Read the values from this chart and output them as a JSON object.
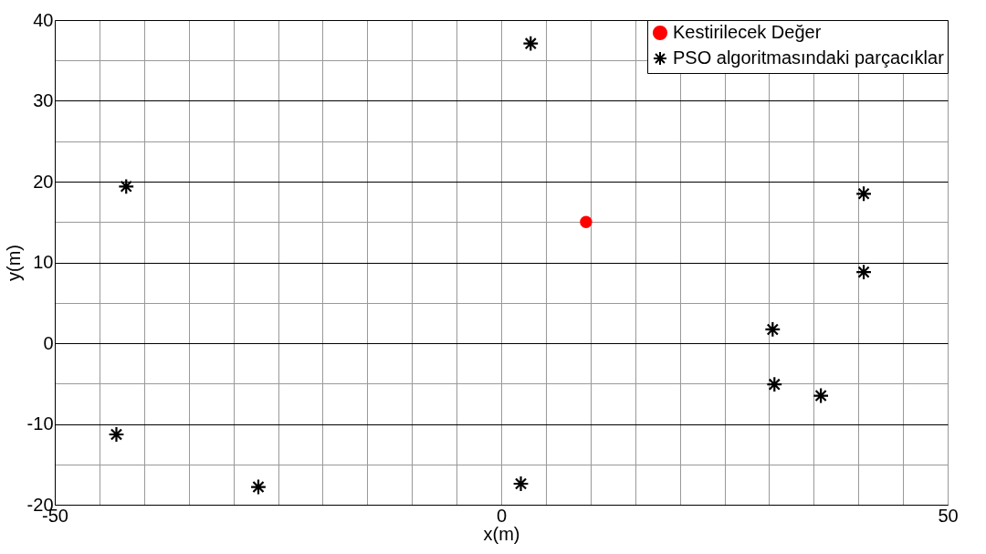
{
  "chart_data": {
    "type": "scatter",
    "xlabel": "x(m)",
    "ylabel": "y(m)",
    "xlim": [
      -50,
      50
    ],
    "ylim": [
      -20,
      40
    ],
    "xticks": [
      -50,
      {
        "value": -45,
        "label": null
      },
      {
        "value": -40,
        "label": null
      },
      {
        "value": -35,
        "label": null
      },
      {
        "value": -30,
        "label": null
      },
      {
        "value": -25,
        "label": null
      },
      {
        "value": -20,
        "label": null
      },
      {
        "value": -15,
        "label": null
      },
      {
        "value": -10,
        "label": null
      },
      {
        "value": -5,
        "label": null
      },
      0,
      {
        "value": 5,
        "label": null
      },
      {
        "value": 10,
        "label": null
      },
      {
        "value": 15,
        "label": null
      },
      {
        "value": 20,
        "label": null
      },
      {
        "value": 25,
        "label": null
      },
      {
        "value": 30,
        "label": null
      },
      {
        "value": 35,
        "label": null
      },
      {
        "value": 40,
        "label": null
      },
      {
        "value": 45,
        "label": null
      },
      50
    ],
    "yticks": [
      -20,
      {
        "value": -15,
        "label": null
      },
      -10,
      {
        "value": -5,
        "label": null
      },
      0,
      {
        "value": 5,
        "label": null
      },
      10,
      {
        "value": 15,
        "label": null
      },
      20,
      {
        "value": 25,
        "label": null
      },
      30,
      {
        "value": 35,
        "label": null
      },
      40
    ],
    "grid": true,
    "legend": "top right",
    "series": [
      {
        "name": "Kestirilecek Değer",
        "color": "#ff0000",
        "marker": "circle",
        "x": [
          9.5
        ],
        "values": [
          15.0
        ]
      },
      {
        "name": "PSO algoritmasındaki parçacıklar",
        "color": "#000000",
        "marker": "cross",
        "x": [
          3.3,
          -42.0,
          40.6,
          40.6,
          30.4,
          30.6,
          35.8,
          -43.1,
          -27.2,
          2.2
        ],
        "values": [
          37.1,
          19.4,
          18.5,
          8.8,
          1.7,
          -5.1,
          -6.5,
          -11.3,
          -17.8,
          -17.4
        ]
      }
    ]
  }
}
